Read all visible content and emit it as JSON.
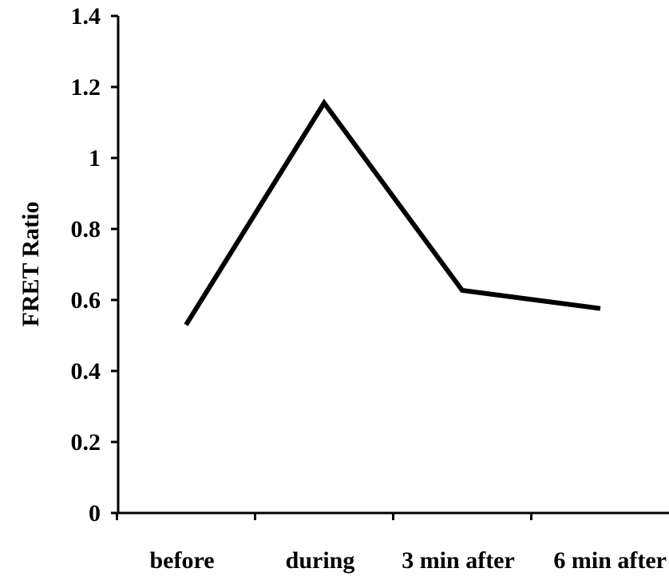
{
  "chart_data": {
    "type": "line",
    "title": "",
    "xlabel": "",
    "ylabel": "FRET Ratio",
    "categories": [
      "before",
      "during",
      "3 min after",
      "6 min after"
    ],
    "series": [
      {
        "values": [
          0.53,
          1.155,
          0.627,
          0.576
        ]
      }
    ],
    "ylim": [
      0,
      1.4
    ],
    "yticks": [
      0,
      0.2,
      0.4,
      0.6,
      0.8,
      1.0,
      1.2,
      1.4
    ],
    "ytick_labels": [
      "0",
      "0.2",
      "0.4",
      "0.6",
      "0.8",
      "1",
      "1.2",
      "1.4"
    ],
    "grid": false,
    "legend": "none",
    "line_color": "#000000"
  }
}
